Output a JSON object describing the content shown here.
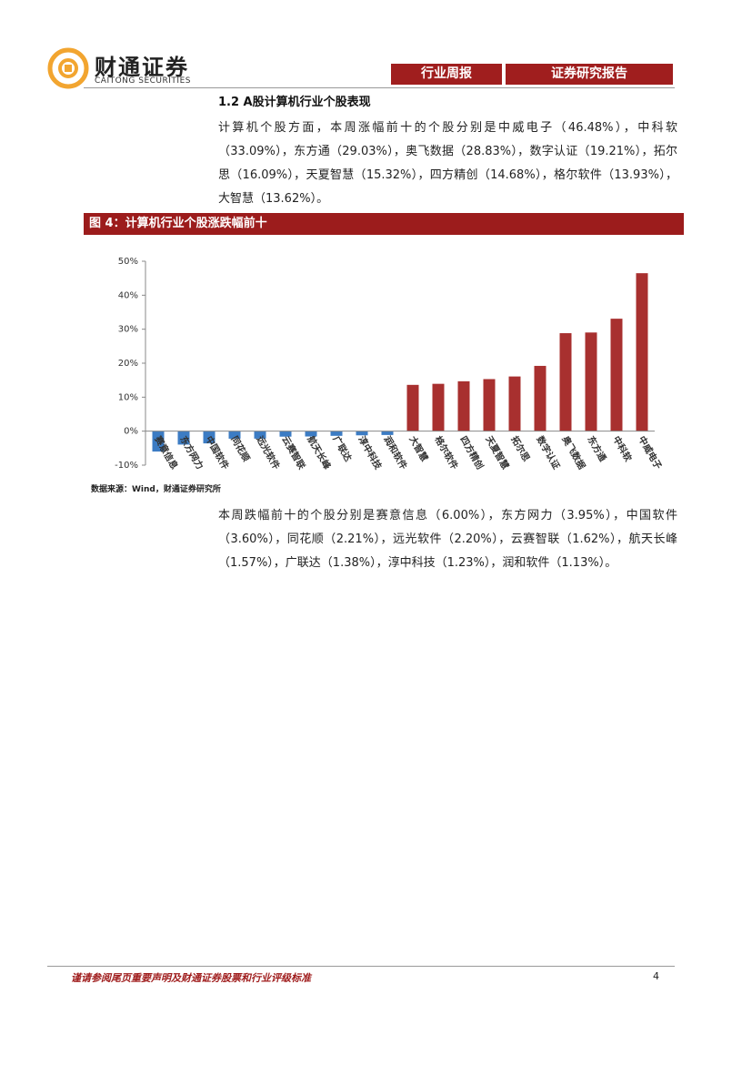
{
  "header": {
    "brand": "财通证券",
    "brand_en": "CAITONG SECURITIES",
    "tags": [
      "行业周报",
      "证券研究报告"
    ]
  },
  "section": {
    "heading": "1.2  A股计算机行业个股表现",
    "paragraph_1": "计算机个股方面，本周涨幅前十的个股分别是中威电子（46.48%），中科软（33.09%），东方通（29.03%），奥飞数据（28.83%），数字认证（19.21%），拓尔思（16.09%），天夏智慧（15.32%），四方精创（14.68%），格尔软件（13.93%），大智慧（13.62%）。",
    "figure_title": "图 4：计算机行业个股涨跌幅前十",
    "source": "数据来源：Wind，财通证券研究所",
    "paragraph_2": "本周跌幅前十的个股分别是赛意信息（6.00%），东方网力（3.95%），中国软件（3.60%），同花顺（2.21%），远光软件（2.20%），云赛智联（1.62%），航天长峰（1.57%），广联达（1.38%），淳中科技（1.23%），润和软件（1.13%）。"
  },
  "chart_data": {
    "type": "bar",
    "categories": [
      "赛意信息",
      "东方网力",
      "中国软件",
      "同花顺",
      "远光软件",
      "云赛智联",
      "航天长峰",
      "广联达",
      "淳中科技",
      "润和软件",
      "大智慧",
      "格尔软件",
      "四方精创",
      "天夏智慧",
      "拓尔思",
      "数字认证",
      "奥飞数据",
      "东方通",
      "中科软",
      "中威电子"
    ],
    "values": [
      -6.0,
      -3.95,
      -3.6,
      -2.21,
      -2.2,
      -1.62,
      -1.57,
      -1.38,
      -1.23,
      -1.13,
      13.62,
      13.93,
      14.68,
      15.32,
      16.09,
      19.21,
      28.83,
      29.03,
      33.09,
      46.48
    ],
    "color": "#a8302f",
    "negative_color": "#3c7cc4",
    "ylim": [
      -10,
      50
    ],
    "yticks": [
      {
        "value": -10,
        "label": "-10%"
      },
      {
        "value": 0,
        "label": "0%"
      },
      {
        "value": 10,
        "label": "10%"
      },
      {
        "value": 20,
        "label": "20%"
      },
      {
        "value": 30,
        "label": "30%"
      },
      {
        "value": 40,
        "label": "40%"
      },
      {
        "value": 50,
        "label": "50%"
      }
    ],
    "grid": false
  },
  "footer": {
    "disclaimer": "谨请参阅尾页重要声明及财通证券股票和行业评级标准",
    "page": "4"
  }
}
